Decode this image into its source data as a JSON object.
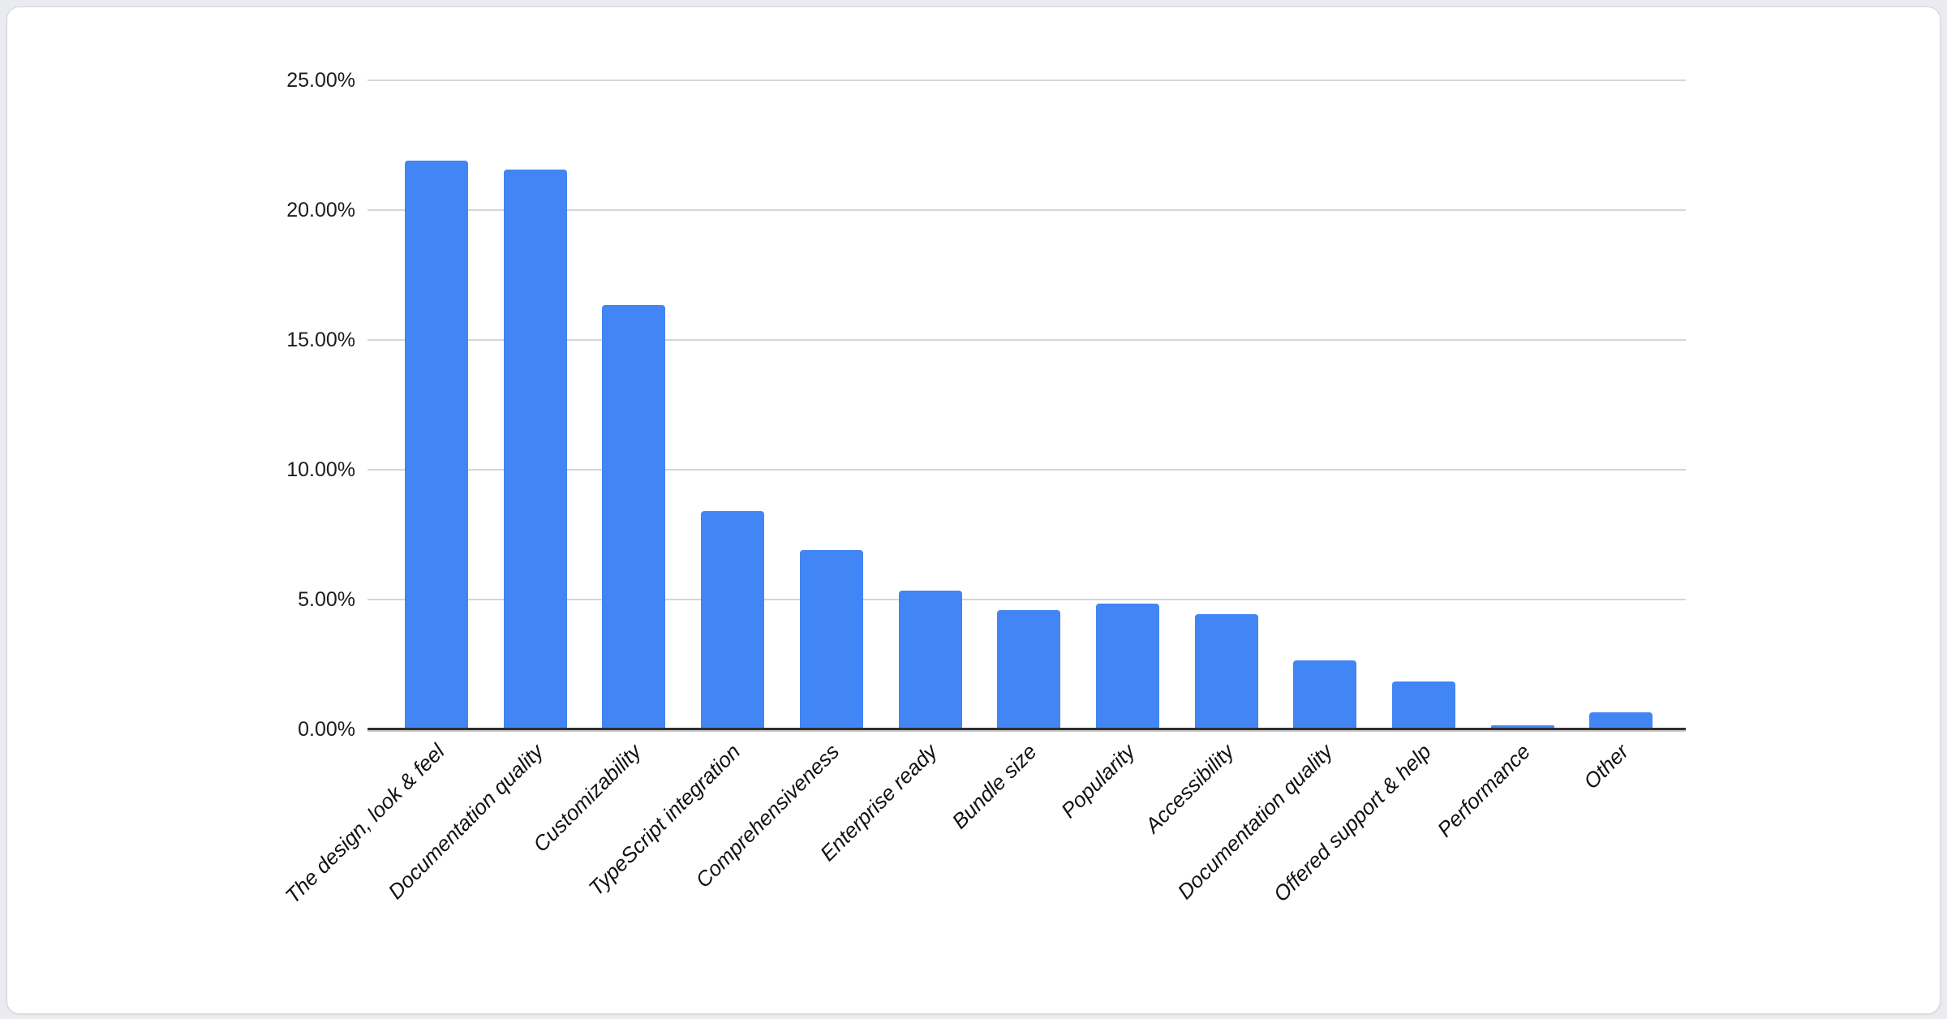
{
  "window": {
    "page_background": "#e9ebee",
    "card_background": "#ffffff",
    "card_border_color": "#d3d6da"
  },
  "chart_data": {
    "type": "bar",
    "title": "",
    "xlabel": "",
    "ylabel": "",
    "categories": [
      "The design, look & feel",
      "Documentation quality",
      "Customizability",
      "TypeScript integration",
      "Comprehensiveness",
      "Enterprise ready",
      "Bundle size",
      "Popularity",
      "Accessibility",
      "Documentation quality",
      "Offered support & help",
      "Performance",
      "Other"
    ],
    "values": [
      21.9,
      21.55,
      16.35,
      8.4,
      6.9,
      5.35,
      4.6,
      4.85,
      4.45,
      2.65,
      1.85,
      0.15,
      0.65
    ],
    "value_unit": "%",
    "ylim": [
      0,
      25
    ],
    "y_ticks": {
      "values": [
        25,
        20,
        15,
        10,
        5,
        0
      ],
      "labels": [
        "25.00%",
        "20.00%",
        "15.00%",
        "10.00%",
        "5.00%",
        "0.00%"
      ]
    },
    "legend_position": "none",
    "grid": true,
    "bar_color": "#4285f4",
    "gridline_color": "#d6d6d6",
    "axis_line_color": "#2f2f2f",
    "axis_shadow_color": "#c9c9c9",
    "tick_label_color": "#1c1c1c",
    "category_label_color": "#111111"
  }
}
